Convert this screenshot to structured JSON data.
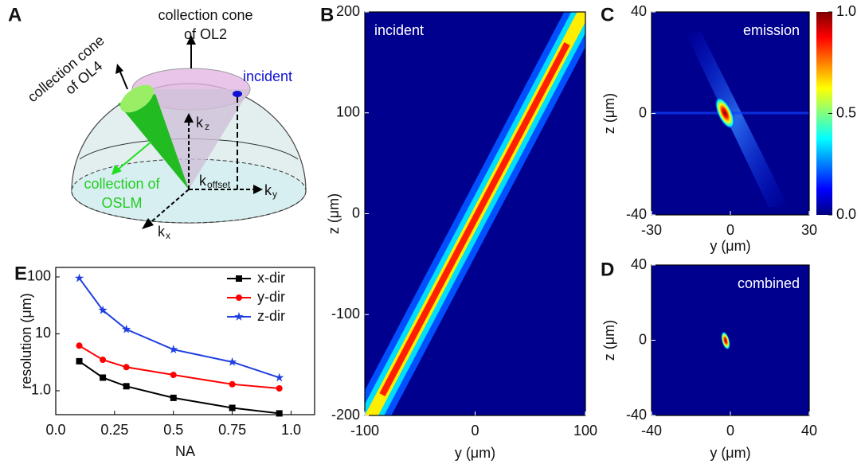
{
  "diagram": {
    "panel_label": "A",
    "ol2": [
      "collection cone",
      "of OL2"
    ],
    "ol4": [
      "collection cone",
      "of OL4"
    ],
    "incident": "incident",
    "kz": [
      "k",
      "z"
    ],
    "koffset": [
      "k",
      "offset"
    ],
    "ky": [
      "k",
      "y"
    ],
    "kx": [
      "k",
      "x"
    ],
    "oslm": [
      "collection of",
      "OSLM"
    ]
  },
  "chart_data": [
    {
      "type": "line",
      "panel_label": "E",
      "x_label": "NA",
      "y_label": "resolution (μm)",
      "x": [
        0.1,
        0.2,
        0.3,
        0.5,
        0.75,
        0.95
      ],
      "series": [
        {
          "name": "x-dir",
          "color": "#000000",
          "marker": "square",
          "values": [
            3.3,
            1.7,
            1.2,
            0.75,
            0.5,
            0.4
          ]
        },
        {
          "name": "y-dir",
          "color": "#ff0000",
          "marker": "circle",
          "values": [
            6.2,
            3.5,
            2.6,
            1.9,
            1.3,
            1.1
          ]
        },
        {
          "name": "z-dir",
          "color": "#1f3fe0",
          "marker": "star",
          "values": [
            95,
            26,
            12,
            5.3,
            3.2,
            1.7
          ]
        }
      ],
      "log_y": true,
      "legend": "upper right",
      "xlim": [
        0,
        1.1
      ],
      "xticks": [
        {
          "value": 0,
          "label": "0.0"
        },
        0.25,
        0.5,
        0.75,
        {
          "value": 1,
          "label": "1.0"
        }
      ],
      "ylim": [
        0.38,
        147
      ],
      "yticks": [
        {
          "value": 1,
          "label": "1.0"
        },
        10,
        100
      ]
    },
    {
      "type": "heatmap",
      "panel_label": "B",
      "annotation": "incident",
      "x_label": "y (μm)",
      "y_label": "z (μm)",
      "xlim": [
        -100,
        100
      ],
      "xticks": [
        -100,
        0,
        100
      ],
      "ylim": [
        -200,
        200
      ],
      "yticks": [
        -200,
        -100,
        0,
        100,
        200
      ]
    },
    {
      "type": "heatmap",
      "panel_label": "C",
      "annotation": "emission",
      "x_label": "y (μm)",
      "y_label": "z (μm)",
      "xlim": [
        -30,
        30
      ],
      "xticks": [
        -30,
        0,
        30
      ],
      "ylim": [
        -40,
        40
      ],
      "yticks": [
        -40,
        0,
        40
      ],
      "colorbar": {
        "lim": [
          0,
          1
        ],
        "ticks": [
          {
            "value": 0,
            "label": "0.0"
          },
          0.5,
          {
            "value": 1,
            "label": "1.0"
          }
        ]
      }
    },
    {
      "type": "heatmap",
      "panel_label": "D",
      "annotation": "combined",
      "x_label": "y (μm)",
      "y_label": "z (μm)",
      "xlim": [
        -40,
        40
      ],
      "xticks": [
        -40,
        0,
        40
      ],
      "ylim": [
        -40,
        40
      ],
      "yticks": [
        -40,
        0,
        40
      ]
    }
  ]
}
